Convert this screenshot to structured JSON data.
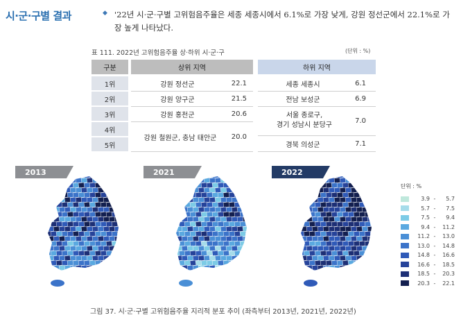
{
  "section_title": "시·군·구별 결과",
  "summary": "'22년 시·군·구별 고위험음주율은 세종 세종시에서 6.1%로 가장 낮게, 강원 정선군에서 22.1%로 가장 높게 나타났다.",
  "table": {
    "caption": "표 111.  2022년 고위험음주율 상·하위 시·군·구",
    "unit": "(단위 : %)",
    "headers": {
      "rank": "구분",
      "top": "상위 지역",
      "bottom": "하위 지역"
    },
    "ranks": [
      "1위",
      "2위",
      "3위",
      "4위",
      "5위"
    ],
    "top": [
      {
        "region": "강원 정선군",
        "value": "22.1"
      },
      {
        "region": "강원 양구군",
        "value": "21.5"
      },
      {
        "region": "강원 홍천군",
        "value": "20.6"
      },
      {
        "region": "강원 철원군, 충남 태안군",
        "value": "20.0"
      }
    ],
    "bottom": [
      {
        "region": "세종 세종시",
        "value": "6.1"
      },
      {
        "region": "전남 보성군",
        "value": "6.9"
      },
      {
        "region": "서울 종로구,\n경기 성남시 분당구",
        "value": "7.0"
      },
      {
        "region": "경북 의성군",
        "value": "7.1"
      }
    ]
  },
  "maps": [
    {
      "year": "2013",
      "tab_color": "#8d8f93"
    },
    {
      "year": "2021",
      "tab_color": "#8d8f93"
    },
    {
      "year": "2022",
      "tab_color": "#233b66"
    }
  ],
  "legend": {
    "unit": "단위 : %",
    "items": [
      {
        "from": "3.9",
        "to": "5.7",
        "color": "#bfe8dc"
      },
      {
        "from": "5.7",
        "to": "7.5",
        "color": "#a6dcea"
      },
      {
        "from": "7.5",
        "to": "9.4",
        "color": "#7ccbe6"
      },
      {
        "from": "9.4",
        "to": "11.2",
        "color": "#5aa9e0"
      },
      {
        "from": "11.2",
        "to": "13.0",
        "color": "#4a8fd6"
      },
      {
        "from": "13.0",
        "to": "14.8",
        "color": "#3b73c9"
      },
      {
        "from": "14.8",
        "to": "16.6",
        "color": "#2f5ab8"
      },
      {
        "from": "16.6",
        "to": "18.5",
        "color": "#26439a"
      },
      {
        "from": "18.5",
        "to": "20.3",
        "color": "#1d2f75"
      },
      {
        "from": "20.3",
        "to": "22.1",
        "color": "#131f4f"
      }
    ]
  },
  "figure_caption": "그림 37.  시·군·구별 고위험음주율 지리적 분포 추이 (좌측부터 2013년, 2021년, 2022년)"
}
